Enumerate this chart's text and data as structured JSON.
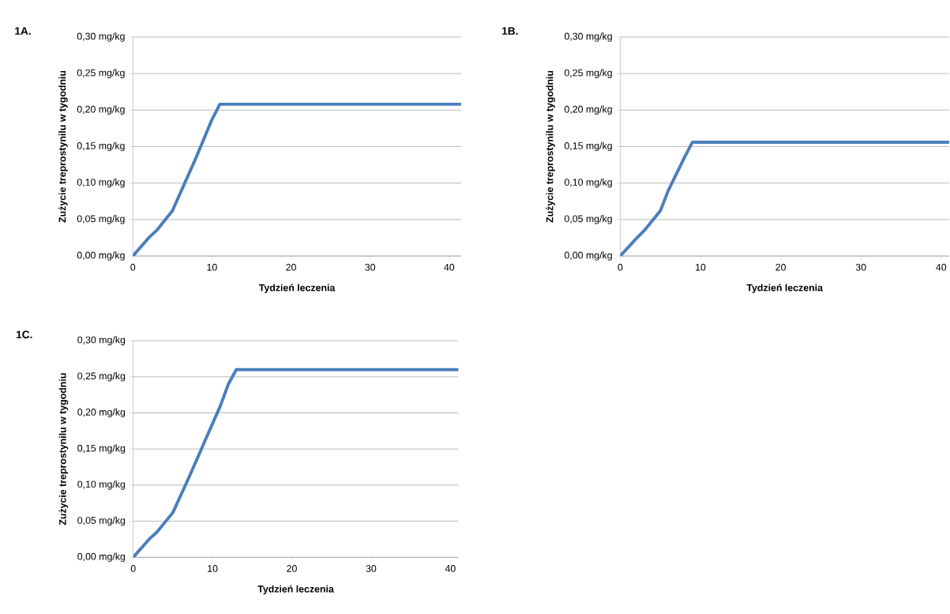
{
  "chart_data": [
    {
      "type": "line",
      "title": "1A.",
      "xlabel": "Tydzień leczenia",
      "ylabel": "Zużycie  treprostynilu  w tygodniu",
      "grid": "y",
      "xlim": [
        0,
        41.5
      ],
      "xticks": [
        0,
        10,
        20,
        30,
        40
      ],
      "ylim": [
        0,
        0.3
      ],
      "yticks": [
        {
          "value": 0,
          "label": "0,00 mg/kg"
        },
        {
          "value": 0.05,
          "label": "0,05 mg/kg"
        },
        {
          "value": 0.1,
          "label": "0,10 mg/kg"
        },
        {
          "value": 0.15,
          "label": "0,15 mg/kg"
        },
        {
          "value": 0.2,
          "label": "0,20 mg/kg"
        },
        {
          "value": 0.25,
          "label": "0,25 mg/kg"
        },
        {
          "value": 0.3,
          "label": "0,30 mg/kg"
        }
      ],
      "series": [
        {
          "color": "#4a7ebb",
          "x": [
            0,
            2,
            3,
            5,
            8,
            10,
            11,
            41.5
          ],
          "values": [
            0,
            0.025,
            0.035,
            0.062,
            0.135,
            0.187,
            0.208,
            0.208
          ]
        }
      ]
    },
    {
      "type": "line",
      "title": "1B.",
      "xlabel": "Tydzień leczenia",
      "ylabel": "Zużycie  treprostynilu  w tygodniu",
      "grid": "y",
      "xlim": [
        0,
        41
      ],
      "xticks": [
        0,
        10,
        20,
        30,
        40
      ],
      "ylim": [
        0,
        0.3
      ],
      "yticks": [
        {
          "value": 0,
          "label": "0,00 mg/kg"
        },
        {
          "value": 0.05,
          "label": "0,05 mg/kg"
        },
        {
          "value": 0.1,
          "label": "0,10 mg/kg"
        },
        {
          "value": 0.15,
          "label": "0,15 mg/kg"
        },
        {
          "value": 0.2,
          "label": "0,20 mg/kg"
        },
        {
          "value": 0.25,
          "label": "0,25 mg/kg"
        },
        {
          "value": 0.3,
          "label": "0,30 mg/kg"
        }
      ],
      "series": [
        {
          "color": "#4a7ebb",
          "x": [
            0,
            2,
            3,
            5,
            6,
            8,
            9,
            41
          ],
          "values": [
            0,
            0.024,
            0.035,
            0.062,
            0.09,
            0.135,
            0.156,
            0.156
          ]
        }
      ]
    },
    {
      "type": "line",
      "title": "1C.",
      "xlabel": "Tydzień leczenia",
      "ylabel": "Zużycie  treprostynilu  w tygodniu",
      "grid": "y",
      "xlim": [
        0,
        41
      ],
      "xticks": [
        0,
        10,
        20,
        30,
        40
      ],
      "ylim": [
        0,
        0.3
      ],
      "yticks": [
        {
          "value": 0,
          "label": "0,00 mg/kg"
        },
        {
          "value": 0.05,
          "label": "0,05 mg/kg"
        },
        {
          "value": 0.1,
          "label": "0,10 mg/kg"
        },
        {
          "value": 0.15,
          "label": "0,15 mg/kg"
        },
        {
          "value": 0.2,
          "label": "0,20 mg/kg"
        },
        {
          "value": 0.25,
          "label": "0,25 mg/kg"
        },
        {
          "value": 0.3,
          "label": "0,30 mg/kg"
        }
      ],
      "series": [
        {
          "color": "#4a7ebb",
          "x": [
            0,
            2,
            3,
            5,
            7,
            9,
            11,
            12,
            13,
            41
          ],
          "values": [
            0,
            0.025,
            0.035,
            0.062,
            0.11,
            0.16,
            0.21,
            0.24,
            0.26,
            0.26
          ]
        }
      ]
    }
  ]
}
